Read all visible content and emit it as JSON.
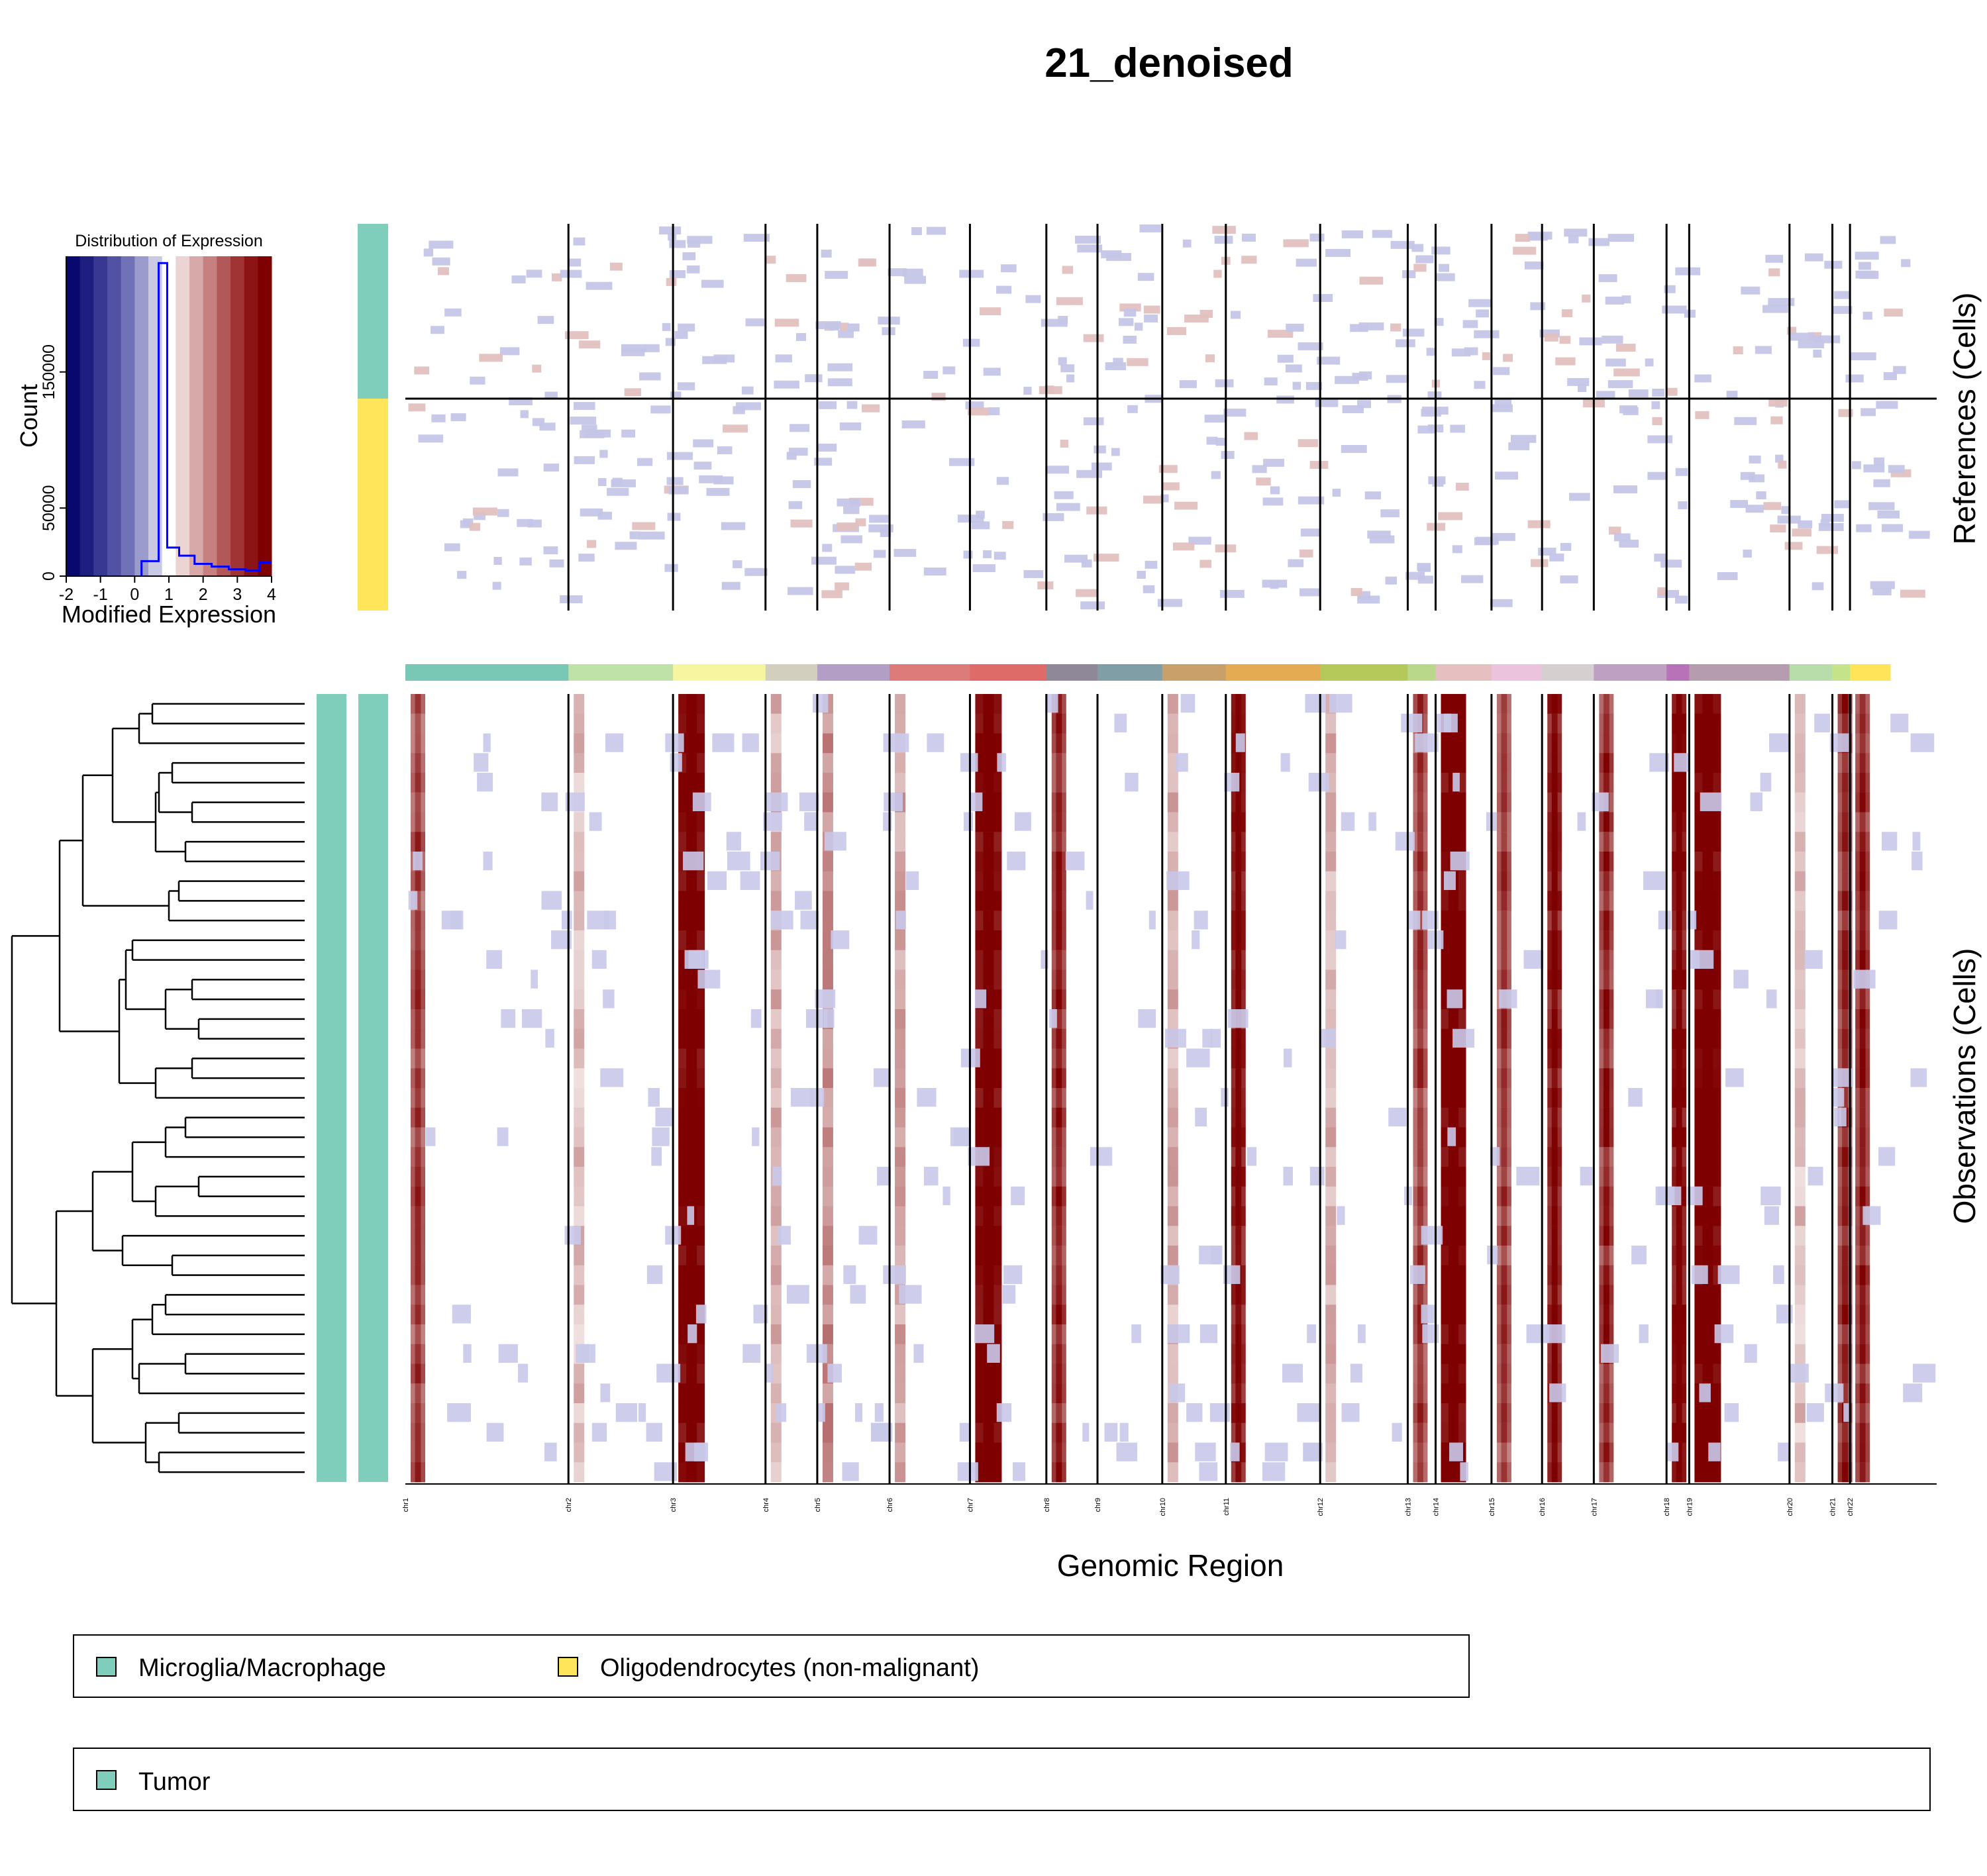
{
  "title": "21_denoised",
  "x_axis_label": "Genomic Region",
  "references_label": "References (Cells)",
  "observations_label": "Observations (Cells)",
  "colors": {
    "microglia": "#7fcdbb",
    "oligodendrocytes": "#fee559",
    "tumor": "#7fcdbb",
    "gain": "#7f0000",
    "loss": "#08086e",
    "histogram_line": "#0000ff"
  },
  "chromosomes": [
    {
      "label": "chr1",
      "color": "#79c7b5"
    },
    {
      "label": "chr2",
      "color": "#bfe2a8"
    },
    {
      "label": "chr3",
      "color": "#f8f5a0"
    },
    {
      "label": "chr4",
      "color": "#d2cfbf"
    },
    {
      "label": "chr5",
      "color": "#b39fc6"
    },
    {
      "label": "chr6",
      "color": "#dd7b7b"
    },
    {
      "label": "chr7",
      "color": "#df6b69"
    },
    {
      "label": "chr8",
      "color": "#8e8898"
    },
    {
      "label": "chr9",
      "color": "#7f9ea6"
    },
    {
      "label": "chr10",
      "color": "#c9a06a"
    },
    {
      "label": "chr11",
      "color": "#e5ab52"
    },
    {
      "label": "chr12",
      "color": "#b5c95a"
    },
    {
      "label": "chr13",
      "color": "#b9d88a"
    },
    {
      "label": "chr14",
      "color": "#e6c0c0"
    },
    {
      "label": "chr15",
      "color": "#ebc3dc"
    },
    {
      "label": "chr16",
      "color": "#d5cfd0"
    },
    {
      "label": "chr17",
      "color": "#bda0c2"
    },
    {
      "label": "chr18",
      "color": "#b873b8"
    },
    {
      "label": "chr19",
      "color": "#b59cae"
    },
    {
      "label": "chr20",
      "color": "#b8dcaa"
    },
    {
      "label": "chr21",
      "color": "#c5e48a"
    },
    {
      "label": "chr22",
      "color": "#ffe45a"
    }
  ],
  "histogram": {
    "title": "Distribution of Expression",
    "xlabel": "Modified Expression",
    "ylabel": "Count",
    "x_ticks": [
      "-2",
      "-1",
      "0",
      "1",
      "2",
      "3",
      "4"
    ],
    "y_ticks": [
      "0",
      "50000",
      "150000"
    ],
    "xlim": [
      -2,
      4
    ],
    "ylim": [
      0,
      235000
    ],
    "bins": [
      {
        "x": 0.4,
        "count": 11000
      },
      {
        "x": 0.6,
        "count": 11000
      },
      {
        "x": 0.8,
        "count": 230000
      },
      {
        "x": 1.1,
        "count": 21000
      },
      {
        "x": 1.5,
        "count": 15000
      },
      {
        "x": 2.0,
        "count": 9000
      },
      {
        "x": 2.5,
        "count": 7000
      },
      {
        "x": 3.0,
        "count": 5000
      },
      {
        "x": 3.5,
        "count": 4000
      },
      {
        "x": 3.8,
        "count": 10000
      }
    ]
  },
  "legend_cell_types": [
    {
      "label": "Microglia/Macrophage",
      "color": "#7fcdbb"
    },
    {
      "label": "Oligodendrocytes (non-malignant)",
      "color": "#fee559"
    }
  ],
  "legend_groups": [
    {
      "label": "Tumor",
      "color": "#7fcdbb"
    }
  ],
  "chart_data": {
    "type": "heatmap",
    "title": "21_denoised",
    "xlabel": "Genomic Region",
    "ylabel_top": "References (Cells)",
    "ylabel_bottom": "Observations (Cells)",
    "categories": [
      "chr1",
      "chr2",
      "chr3",
      "chr4",
      "chr5",
      "chr6",
      "chr7",
      "chr8",
      "chr9",
      "chr10",
      "chr11",
      "chr12",
      "chr13",
      "chr14",
      "chr15",
      "chr16",
      "chr17",
      "chr18",
      "chr19",
      "chr20",
      "chr21",
      "chr22"
    ],
    "observation_gain_level": [
      0.6,
      0.25,
      1.0,
      0.3,
      0.45,
      0.35,
      1.0,
      0.7,
      0.1,
      0.3,
      0.85,
      0.3,
      0.6,
      1.0,
      0.6,
      0.85,
      0.7,
      0.9,
      1.0,
      0.25,
      0.7,
      0.7
    ],
    "reference_groups": [
      "Microglia/Macrophage",
      "Oligodendrocytes (non-malignant)"
    ],
    "observation_groups": [
      "Tumor"
    ]
  }
}
